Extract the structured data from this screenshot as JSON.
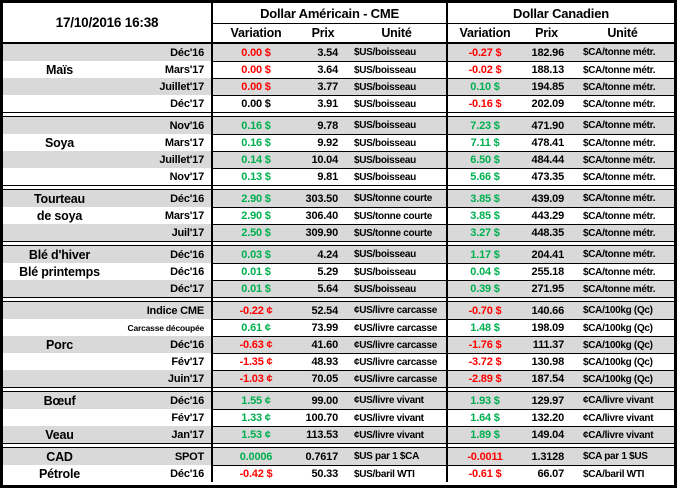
{
  "chart_data": {
    "type": "table",
    "timestamp": "17/10/2016 16:38",
    "sections": {
      "us": {
        "title": "Dollar Américain - CME",
        "columns": [
          "Variation",
          "Prix",
          "Unité"
        ]
      },
      "ca": {
        "title": "Dollar Canadien",
        "columns": [
          "Variation",
          "Prix",
          "Unité"
        ]
      }
    },
    "colors": {
      "positive": "#00b050",
      "negative": "#ff0000",
      "neutral": "#000000",
      "row_shade": "#d9d9d9",
      "grid": "#000000"
    },
    "groups": [
      {
        "name": "Maïs",
        "rows": [
          {
            "label": "",
            "contract": "Déc'16",
            "us_var": "0.00 $",
            "us_dir": "neg",
            "us_prix": "3.54",
            "us_unit": "$US/boisseau",
            "ca_var": "-0.27 $",
            "ca_dir": "neg",
            "ca_prix": "182.96",
            "ca_unit": "$CA/tonne métr."
          },
          {
            "label": "Maïs",
            "contract": "Mars'17",
            "us_var": "0.00 $",
            "us_dir": "neg",
            "us_prix": "3.64",
            "us_unit": "$US/boisseau",
            "ca_var": "-0.02 $",
            "ca_dir": "neg",
            "ca_prix": "188.13",
            "ca_unit": "$CA/tonne métr."
          },
          {
            "label": "",
            "contract": "Juillet'17",
            "us_var": "0.00 $",
            "us_dir": "neg",
            "us_prix": "3.77",
            "us_unit": "$US/boisseau",
            "ca_var": "0.10 $",
            "ca_dir": "pos",
            "ca_prix": "194.85",
            "ca_unit": "$CA/tonne métr."
          },
          {
            "label": "",
            "contract": "Déc'17",
            "us_var": "0.00 $",
            "us_dir": "zero",
            "us_prix": "3.91",
            "us_unit": "$US/boisseau",
            "ca_var": "-0.16 $",
            "ca_dir": "neg",
            "ca_prix": "202.09",
            "ca_unit": "$CA/tonne métr."
          }
        ]
      },
      {
        "name": "Soya",
        "rows": [
          {
            "label": "",
            "contract": "Nov'16",
            "us_var": "0.16 $",
            "us_dir": "pos",
            "us_prix": "9.78",
            "us_unit": "$US/boisseau",
            "ca_var": "7.23 $",
            "ca_dir": "pos",
            "ca_prix": "471.90",
            "ca_unit": "$CA/tonne métr."
          },
          {
            "label": "Soya",
            "contract": "Mars'17",
            "us_var": "0.16 $",
            "us_dir": "pos",
            "us_prix": "9.92",
            "us_unit": "$US/boisseau",
            "ca_var": "7.11 $",
            "ca_dir": "pos",
            "ca_prix": "478.41",
            "ca_unit": "$CA/tonne métr."
          },
          {
            "label": "",
            "contract": "Juillet'17",
            "us_var": "0.14 $",
            "us_dir": "pos",
            "us_prix": "10.04",
            "us_unit": "$US/boisseau",
            "ca_var": "6.50 $",
            "ca_dir": "pos",
            "ca_prix": "484.44",
            "ca_unit": "$CA/tonne métr."
          },
          {
            "label": "",
            "contract": "Nov'17",
            "us_var": "0.13 $",
            "us_dir": "pos",
            "us_prix": "9.81",
            "us_unit": "$US/boisseau",
            "ca_var": "5.66 $",
            "ca_dir": "pos",
            "ca_prix": "473.35",
            "ca_unit": "$CA/tonne métr."
          }
        ]
      },
      {
        "name": "Tourteau de soya",
        "rows": [
          {
            "label": "Tourteau",
            "contract": "Déc'16",
            "us_var": "2.90 $",
            "us_dir": "pos",
            "us_prix": "303.50",
            "us_unit": "$US/tonne courte",
            "ca_var": "3.85 $",
            "ca_dir": "pos",
            "ca_prix": "439.09",
            "ca_unit": "$CA/tonne métr."
          },
          {
            "label": "de soya",
            "contract": "Mars'17",
            "us_var": "2.90 $",
            "us_dir": "pos",
            "us_prix": "306.40",
            "us_unit": "$US/tonne courte",
            "ca_var": "3.85 $",
            "ca_dir": "pos",
            "ca_prix": "443.29",
            "ca_unit": "$CA/tonne métr."
          },
          {
            "label": "",
            "contract": "Juil'17",
            "us_var": "2.50 $",
            "us_dir": "pos",
            "us_prix": "309.90",
            "us_unit": "$US/tonne courte",
            "ca_var": "3.27 $",
            "ca_dir": "pos",
            "ca_prix": "448.35",
            "ca_unit": "$CA/tonne métr."
          }
        ]
      },
      {
        "name": "Blé",
        "rows": [
          {
            "label": "Blé d'hiver",
            "contract": "Déc'16",
            "us_var": "0.03 $",
            "us_dir": "pos",
            "us_prix": "4.24",
            "us_unit": "$US/boisseau",
            "ca_var": "1.17 $",
            "ca_dir": "pos",
            "ca_prix": "204.41",
            "ca_unit": "$CA/tonne métr."
          },
          {
            "label": "Blé printemps",
            "contract": "Déc'16",
            "us_var": "0.01 $",
            "us_dir": "pos",
            "us_prix": "5.29",
            "us_unit": "$US/boisseau",
            "ca_var": "0.04 $",
            "ca_dir": "pos",
            "ca_prix": "255.18",
            "ca_unit": "$CA/tonne métr."
          },
          {
            "label": "",
            "contract": "Déc'17",
            "us_var": "0.01 $",
            "us_dir": "pos",
            "us_prix": "5.64",
            "us_unit": "$US/boisseau",
            "ca_var": "0.39 $",
            "ca_dir": "pos",
            "ca_prix": "271.95",
            "ca_unit": "$CA/tonne métr."
          }
        ]
      },
      {
        "name": "Porc",
        "rows": [
          {
            "label": "",
            "contract": "Indice CME",
            "us_var": "-0.22 ¢",
            "us_dir": "neg",
            "us_prix": "52.54",
            "us_unit": "¢US/livre carcasse",
            "ca_var": "-0.70 $",
            "ca_dir": "neg",
            "ca_prix": "140.66",
            "ca_unit": "$CA/100kg (Qc)"
          },
          {
            "label": "",
            "contract": "Carcasse découpée",
            "contract_small": true,
            "us_var": "0.61 ¢",
            "us_dir": "pos",
            "us_prix": "73.99",
            "us_unit": "¢US/livre carcasse",
            "ca_var": "1.48 $",
            "ca_dir": "pos",
            "ca_prix": "198.09",
            "ca_unit": "$CA/100kg (Qc)"
          },
          {
            "label": "Porc",
            "contract": "Déc'16",
            "us_var": "-0.63 ¢",
            "us_dir": "neg",
            "us_prix": "41.60",
            "us_unit": "¢US/livre carcasse",
            "ca_var": "-1.76 $",
            "ca_dir": "neg",
            "ca_prix": "111.37",
            "ca_unit": "$CA/100kg (Qc)"
          },
          {
            "label": "",
            "contract": "Fév'17",
            "us_var": "-1.35 ¢",
            "us_dir": "neg",
            "us_prix": "48.93",
            "us_unit": "¢US/livre carcasse",
            "ca_var": "-3.72 $",
            "ca_dir": "neg",
            "ca_prix": "130.98",
            "ca_unit": "$CA/100kg (Qc)"
          },
          {
            "label": "",
            "contract": "Juin'17",
            "us_var": "-1.03 ¢",
            "us_dir": "neg",
            "us_prix": "70.05",
            "us_unit": "¢US/livre carcasse",
            "ca_var": "-2.89 $",
            "ca_dir": "neg",
            "ca_prix": "187.54",
            "ca_unit": "$CA/100kg (Qc)"
          }
        ]
      },
      {
        "name": "Bœuf / Veau",
        "rows": [
          {
            "label": "Bœuf",
            "contract": "Déc'16",
            "us_var": "1.55 ¢",
            "us_dir": "pos",
            "us_prix": "99.00",
            "us_unit": "¢US/livre vivant",
            "ca_var": "1.93 $",
            "ca_dir": "pos",
            "ca_prix": "129.97",
            "ca_unit": "¢CA/livre vivant"
          },
          {
            "label": "",
            "contract": "Fév'17",
            "us_var": "1.33 ¢",
            "us_dir": "pos",
            "us_prix": "100.70",
            "us_unit": "¢US/livre vivant",
            "ca_var": "1.64 $",
            "ca_dir": "pos",
            "ca_prix": "132.20",
            "ca_unit": "¢CA/livre vivant"
          },
          {
            "label": "Veau",
            "contract": "Jan'17",
            "us_var": "1.53 ¢",
            "us_dir": "pos",
            "us_prix": "113.53",
            "us_unit": "¢US/livre vivant",
            "ca_var": "1.89 $",
            "ca_dir": "pos",
            "ca_prix": "149.04",
            "ca_unit": "¢CA/livre vivant"
          }
        ]
      },
      {
        "name": "CAD / Pétrole",
        "rows": [
          {
            "label": "CAD",
            "contract": "SPOT",
            "us_var": "0.0006",
            "us_dir": "pos",
            "us_prix": "0.7617",
            "us_unit": "$US par 1 $CA",
            "ca_var": "-0.0011",
            "ca_dir": "neg",
            "ca_prix": "1.3128",
            "ca_unit": "$CA par 1 $US"
          },
          {
            "label": "Pétrole",
            "contract": "Déc'16",
            "us_var": "-0.42 $",
            "us_dir": "neg",
            "us_prix": "50.33",
            "us_unit": "$US/baril WTI",
            "ca_var": "-0.61 $",
            "ca_dir": "neg",
            "ca_prix": "66.07",
            "ca_unit": "$CA/baril WTI"
          }
        ]
      }
    ]
  }
}
